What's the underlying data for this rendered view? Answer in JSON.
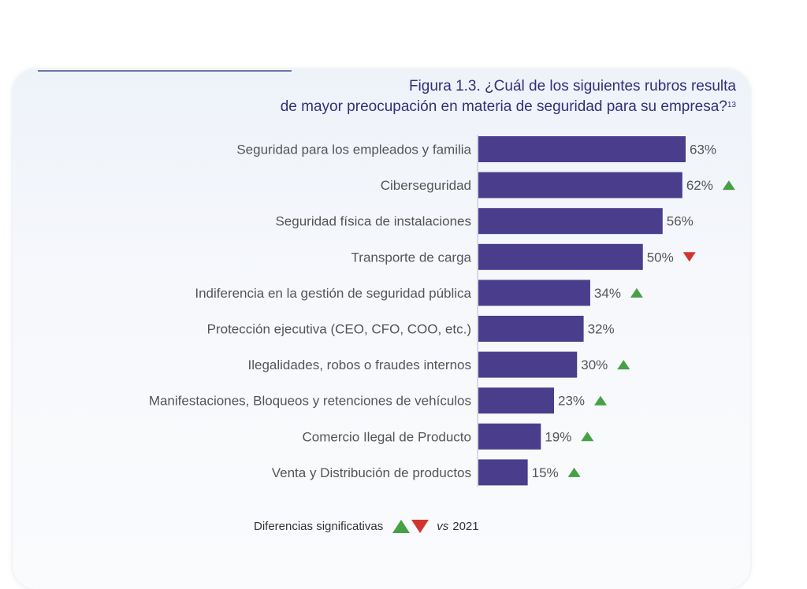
{
  "chart_data": {
    "type": "bar",
    "orientation": "horizontal",
    "title_line1": "Figura 1.3. ¿Cuál de los siguientes rubros resulta",
    "title_line2": "de mayor preocupación en materia de seguridad para su empresa?",
    "title_footnote": "13",
    "categories": [
      "Seguridad para los empleados y familia",
      "Ciberseguridad",
      "Seguridad física de instalaciones",
      "Transporte de carga",
      "Indiferencia en la gestión de seguridad pública",
      "Protección ejecutiva (CEO, CFO, COO, etc.)",
      "Ilegalidades, robos o fraudes internos",
      "Manifestaciones, Bloqueos y retenciones de vehículos",
      "Comercio Ilegal de Producto",
      "Venta y Distribución de productos"
    ],
    "values": [
      63,
      62,
      56,
      50,
      34,
      32,
      30,
      23,
      19,
      15
    ],
    "value_labels": [
      "63%",
      "62%",
      "56%",
      "50%",
      "34%",
      "32%",
      "30%",
      "23%",
      "19%",
      "15%"
    ],
    "changes": [
      "none",
      "up",
      "none",
      "down",
      "up",
      "none",
      "up",
      "up",
      "up",
      "up"
    ],
    "unit": "%",
    "bar_color": "#4a3e8c",
    "up_color": "#46a045",
    "down_color": "#d2352d"
  },
  "legend": {
    "label": "Diferencias significativas",
    "vs": "vs",
    "year": "2021"
  }
}
